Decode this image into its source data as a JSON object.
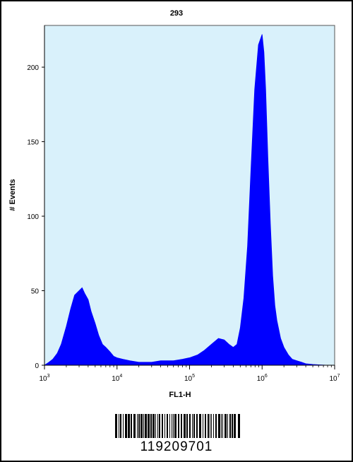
{
  "chart_data": {
    "type": "area",
    "title": "293",
    "xlabel": "FL1-H",
    "ylabel": "# Events",
    "x_scale": "log",
    "xlim": [
      1000,
      10000000
    ],
    "ylim": [
      0,
      228
    ],
    "x_ticks": [
      1000,
      10000,
      100000,
      1000000,
      10000000
    ],
    "x_tick_labels": [
      {
        "base": "10",
        "exp": "3"
      },
      {
        "base": "10",
        "exp": "4"
      },
      {
        "base": "10",
        "exp": "5"
      },
      {
        "base": "10",
        "exp": "6"
      },
      {
        "base": "10",
        "exp": "7"
      }
    ],
    "y_ticks": [
      0,
      50,
      100,
      150,
      200
    ],
    "y_tick_labels": [
      "0",
      "50",
      "100",
      "150",
      "200"
    ],
    "grid": false,
    "background_color": "#d9f1fb",
    "fill_color": "#0000ff",
    "series": [
      {
        "x": [
          1000,
          1150,
          1300,
          1500,
          1700,
          2000,
          2300,
          2600,
          3000,
          3300,
          3600,
          4000,
          4400,
          5000,
          5600,
          6300,
          7000,
          8000,
          9000,
          10000,
          12000,
          15000,
          20000,
          30000,
          40000,
          60000,
          80000,
          100000,
          130000,
          160000,
          200000,
          250000,
          300000,
          350000,
          400000,
          450000,
          500000,
          560000,
          630000,
          700000,
          790000,
          890000,
          1000000,
          1060000,
          1120000,
          1200000,
          1300000,
          1400000,
          1500000,
          1600000,
          1800000,
          2000000,
          2300000,
          2600000,
          3000000,
          3500000,
          4000000,
          5000000,
          6000000,
          8000000,
          10000000
        ],
        "y": [
          0,
          2,
          4,
          8,
          14,
          26,
          38,
          47,
          50,
          52,
          48,
          44,
          36,
          28,
          20,
          14,
          12,
          9,
          6,
          5,
          4,
          3,
          2,
          2,
          3,
          3,
          4,
          5,
          7,
          10,
          14,
          18,
          17,
          14,
          12,
          14,
          25,
          45,
          80,
          130,
          185,
          215,
          222,
          210,
          185,
          140,
          95,
          60,
          40,
          30,
          18,
          12,
          7,
          4,
          3,
          2,
          1,
          0.5,
          0.3,
          0,
          0
        ]
      }
    ]
  },
  "barcode": {
    "number": "119209701"
  }
}
